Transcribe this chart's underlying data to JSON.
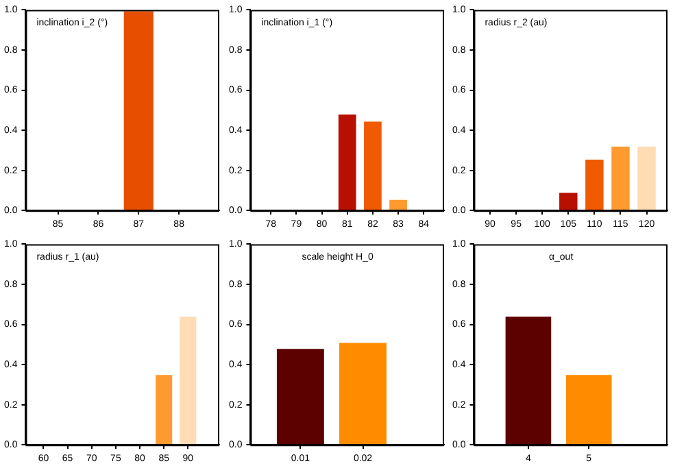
{
  "chart_data": [
    {
      "type": "bar",
      "title": "inclination i_2 (°)",
      "x": [
        85,
        86,
        87,
        88
      ],
      "values": [
        0,
        0,
        1,
        0
      ],
      "colors": [
        "#e84e00",
        "#e84e00",
        "#e84e00",
        "#e84e00"
      ],
      "xlim": [
        84.2,
        89
      ],
      "xticks": [
        85,
        86,
        87,
        88
      ],
      "ylim": [
        0,
        1
      ],
      "yticks": [
        {
          "value": 0,
          "label": "0.0"
        },
        {
          "value": 0.2,
          "label": "0.2"
        },
        {
          "value": 0.4,
          "label": "0.4"
        },
        {
          "value": 0.6,
          "label": "0.6"
        },
        {
          "value": 0.8,
          "label": "0.8"
        },
        {
          "value": 1,
          "label": "1.0"
        }
      ],
      "grid": false,
      "legend": false
    },
    {
      "type": "bar",
      "title": "inclination i_1 (°)",
      "x": [
        78,
        79,
        80,
        81,
        82,
        83,
        84
      ],
      "values": [
        0,
        0,
        0,
        0.485,
        0.45,
        0.06,
        0
      ],
      "colors": [
        "#b81000",
        "#b81000",
        "#b81000",
        "#b81000",
        "#f05a00",
        "#ff9a30",
        "#ffdcb4"
      ],
      "xlim": [
        77.2,
        84.8
      ],
      "xticks": [
        78,
        79,
        80,
        81,
        82,
        83,
        84
      ],
      "ylim": [
        0,
        1
      ],
      "yticks": [
        {
          "value": 0,
          "label": "0.0"
        },
        {
          "value": 0.2,
          "label": "0.2"
        },
        {
          "value": 0.4,
          "label": "0.4"
        },
        {
          "value": 0.6,
          "label": "0.6"
        },
        {
          "value": 0.8,
          "label": "0.8"
        },
        {
          "value": 1,
          "label": "1.0"
        }
      ],
      "grid": false,
      "legend": false
    },
    {
      "type": "bar",
      "title": "radius r_2 (au)",
      "x": [
        90,
        95,
        100,
        105,
        110,
        115,
        120
      ],
      "values": [
        0,
        0,
        0,
        0.095,
        0.26,
        0.325,
        0.325
      ],
      "colors": [
        "#b81000",
        "#b81000",
        "#b81000",
        "#b81000",
        "#f05a00",
        "#ff9a30",
        "#ffdcb4"
      ],
      "xlim": [
        86.9,
        124
      ],
      "xticks": [
        90,
        95,
        100,
        105,
        110,
        115,
        120
      ],
      "ylim": [
        0,
        1
      ],
      "yticks": [
        {
          "value": 0,
          "label": "0.0"
        },
        {
          "value": 0.2,
          "label": "0.2"
        },
        {
          "value": 0.4,
          "label": "0.4"
        },
        {
          "value": 0.6,
          "label": "0.6"
        },
        {
          "value": 0.8,
          "label": "0.8"
        },
        {
          "value": 1,
          "label": "1.0"
        }
      ],
      "grid": false,
      "legend": false
    },
    {
      "type": "bar",
      "title": "radius r_1 (au)",
      "x": [
        60,
        65,
        70,
        75,
        80,
        85,
        90
      ],
      "values": [
        0,
        0,
        0,
        0,
        0,
        0.355,
        0.645
      ],
      "colors": [
        "#ff9a30",
        "#ff9a30",
        "#ff9a30",
        "#ff9a30",
        "#ff9a30",
        "#ff9a30",
        "#ffdcb4"
      ],
      "xlim": [
        56.3,
        96.5
      ],
      "xticks": [
        60,
        65,
        70,
        75,
        80,
        85,
        90
      ],
      "ylim": [
        0,
        1
      ],
      "yticks": [
        {
          "value": 0,
          "label": "0.0"
        },
        {
          "value": 0.2,
          "label": "0.2"
        },
        {
          "value": 0.4,
          "label": "0.4"
        },
        {
          "value": 0.6,
          "label": "0.6"
        },
        {
          "value": 0.8,
          "label": "0.8"
        },
        {
          "value": 1,
          "label": "1.0"
        }
      ],
      "grid": false,
      "legend": false
    },
    {
      "type": "bar",
      "title": "scale height H_0",
      "x": [
        0.01,
        0.02
      ],
      "values": [
        0.485,
        0.515
      ],
      "colors": [
        "#5c0000",
        "#ff8c00"
      ],
      "xlim": [
        0.002,
        0.033
      ],
      "xticks": [
        0.01,
        0.02
      ],
      "ylim": [
        0,
        1
      ],
      "yticks": [
        {
          "value": 0,
          "label": "0.0"
        },
        {
          "value": 0.2,
          "label": "0.2"
        },
        {
          "value": 0.4,
          "label": "0.4"
        },
        {
          "value": 0.6,
          "label": "0.6"
        },
        {
          "value": 0.8,
          "label": "0.8"
        },
        {
          "value": 1,
          "label": "1.0"
        }
      ],
      "grid": false,
      "legend": false
    },
    {
      "type": "bar",
      "title": "α_out",
      "x": [
        4,
        5
      ],
      "values": [
        0.645,
        0.355
      ],
      "colors": [
        "#5c0000",
        "#ff8c00"
      ],
      "xlim": [
        3.1,
        6.3
      ],
      "xticks": [
        4,
        5
      ],
      "ylim": [
        0,
        1
      ],
      "yticks": [
        {
          "value": 0,
          "label": "0.0"
        },
        {
          "value": 0.2,
          "label": "0.2"
        },
        {
          "value": 0.4,
          "label": "0.4"
        },
        {
          "value": 0.6,
          "label": "0.6"
        },
        {
          "value": 0.8,
          "label": "0.8"
        },
        {
          "value": 1,
          "label": "1.0"
        }
      ],
      "grid": false,
      "legend": false
    }
  ]
}
